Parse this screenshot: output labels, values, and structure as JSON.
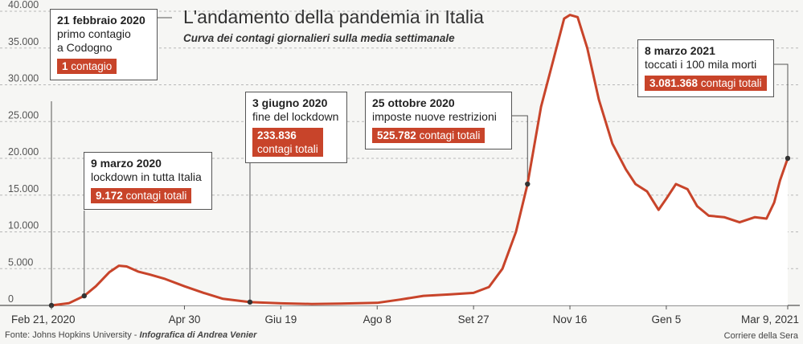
{
  "header": {
    "title": "L'andamento della pandemia in Italia",
    "subtitle": "Curva dei contagi giornalieri sulla media settimanale"
  },
  "footer": {
    "source": "Fonte: Johns Hopkins University - ",
    "credit": "Infografica di Andrea Venier",
    "publisher": "Corriere della Sera"
  },
  "chart_data": {
    "type": "area",
    "title": "L'andamento della pandemia in Italia",
    "subtitle": "Curva dei contagi giornalieri sulla media settimanale",
    "xlabel": "",
    "ylabel": "",
    "ylim": [
      0,
      40000
    ],
    "yticks": [
      {
        "value": 0,
        "label": "0"
      },
      {
        "value": 5000,
        "label": "5.000"
      },
      {
        "value": 10000,
        "label": "10.000"
      },
      {
        "value": 15000,
        "label": "15.000"
      },
      {
        "value": 20000,
        "label": "20.000"
      },
      {
        "value": 25000,
        "label": "25.000"
      },
      {
        "value": 30000,
        "label": "30.000"
      },
      {
        "value": 35000,
        "label": "35.000"
      },
      {
        "value": 40000,
        "label": "40.000"
      }
    ],
    "xlim": [
      "2020-02-21",
      "2021-03-09"
    ],
    "xticks": [
      {
        "date": "2020-02-21",
        "label": "Feb 21, 2020"
      },
      {
        "date": "2020-04-30",
        "label": "Apr 30"
      },
      {
        "date": "2020-06-19",
        "label": "Giu 19"
      },
      {
        "date": "2020-08-08",
        "label": "Ago 8"
      },
      {
        "date": "2020-09-27",
        "label": "Set 27"
      },
      {
        "date": "2020-11-16",
        "label": "Nov 16"
      },
      {
        "date": "2021-01-05",
        "label": "Gen 5"
      },
      {
        "date": "2021-03-09",
        "label": "Mar 9, 2021"
      }
    ],
    "grid": true,
    "colors": {
      "line": "#c8442a",
      "area": "#ffffff",
      "badge": "#c8442a"
    },
    "series": [
      {
        "values": [
          [
            "2020-02-21",
            0
          ],
          [
            "2020-03-01",
            300
          ],
          [
            "2020-03-09",
            1300
          ],
          [
            "2020-03-15",
            2600
          ],
          [
            "2020-03-22",
            4500
          ],
          [
            "2020-03-27",
            5400
          ],
          [
            "2020-03-31",
            5300
          ],
          [
            "2020-04-06",
            4600
          ],
          [
            "2020-04-12",
            4200
          ],
          [
            "2020-04-20",
            3600
          ],
          [
            "2020-04-30",
            2600
          ],
          [
            "2020-05-10",
            1700
          ],
          [
            "2020-05-20",
            900
          ],
          [
            "2020-06-03",
            450
          ],
          [
            "2020-06-19",
            280
          ],
          [
            "2020-07-05",
            200
          ],
          [
            "2020-07-20",
            240
          ],
          [
            "2020-08-08",
            350
          ],
          [
            "2020-08-20",
            800
          ],
          [
            "2020-09-01",
            1300
          ],
          [
            "2020-09-15",
            1500
          ],
          [
            "2020-09-27",
            1700
          ],
          [
            "2020-10-05",
            2500
          ],
          [
            "2020-10-12",
            5000
          ],
          [
            "2020-10-19",
            10000
          ],
          [
            "2020-10-25",
            16500
          ],
          [
            "2020-11-01",
            27000
          ],
          [
            "2020-11-08",
            34000
          ],
          [
            "2020-11-13",
            39000
          ],
          [
            "2020-11-16",
            39500
          ],
          [
            "2020-11-20",
            39200
          ],
          [
            "2020-11-25",
            35000
          ],
          [
            "2020-12-01",
            28000
          ],
          [
            "2020-12-08",
            22000
          ],
          [
            "2020-12-15",
            18500
          ],
          [
            "2020-12-20",
            16500
          ],
          [
            "2020-12-26",
            15500
          ],
          [
            "2021-01-01",
            13000
          ],
          [
            "2021-01-05",
            14500
          ],
          [
            "2021-01-10",
            16500
          ],
          [
            "2021-01-16",
            15800
          ],
          [
            "2021-01-21",
            13500
          ],
          [
            "2021-01-27",
            12200
          ],
          [
            "2021-02-04",
            12000
          ],
          [
            "2021-02-12",
            11300
          ],
          [
            "2021-02-20",
            12000
          ],
          [
            "2021-02-26",
            11800
          ],
          [
            "2021-03-02",
            14000
          ],
          [
            "2021-03-05",
            17000
          ],
          [
            "2021-03-09",
            20000
          ]
        ]
      }
    ],
    "annotations": [
      {
        "date_label": "21 febbraio 2020",
        "desc": "primo contagio\na Codogno",
        "value_num": "1",
        "value_text": " contagio",
        "point": [
          "2020-02-21",
          0
        ]
      },
      {
        "date_label": "9 marzo 2020",
        "desc": "lockdown in tutta Italia",
        "value_num": "9.172",
        "value_text": " contagi totali",
        "point": [
          "2020-03-09",
          1300
        ]
      },
      {
        "date_label": "3 giugno 2020",
        "desc": "fine del lockdown",
        "value_num": "233.836",
        "value_text": "\ncontagi totali",
        "point": [
          "2020-06-03",
          450
        ]
      },
      {
        "date_label": "25 ottobre 2020",
        "desc": "imposte nuove restrizioni",
        "value_num": "525.782",
        "value_text": " contagi totali",
        "point": [
          "2020-10-25",
          16500
        ]
      },
      {
        "date_label": "8 marzo 2021",
        "desc": "toccati i 100 mila morti",
        "value_num": "3.081.368",
        "value_text": " contagi totali",
        "point": [
          "2021-03-09",
          20000
        ]
      }
    ]
  }
}
